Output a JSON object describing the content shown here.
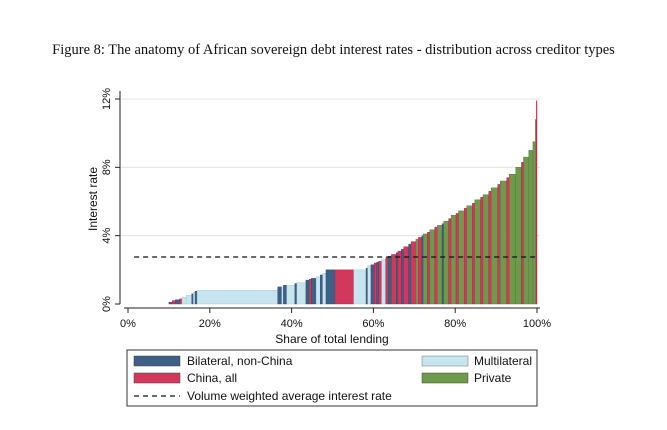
{
  "caption": "Figure 8: The anatomy of African sovereign debt interest rates - distribution across creditor types",
  "chart_data": {
    "type": "bar",
    "xlabel": "Share of total lending",
    "ylabel": "Interest rate",
    "xlim": [
      0,
      100
    ],
    "ylim": [
      0,
      12
    ],
    "xticks": [
      "0%",
      "20%",
      "40%",
      "60%",
      "80%",
      "100%"
    ],
    "yticks": [
      "0%",
      "4%",
      "8%",
      "12%"
    ],
    "weighted_average": 2.75,
    "grid": true,
    "colors": {
      "bilateral": "#3f5f86",
      "china": "#d1385b",
      "multilateral": "#c7e5ef",
      "private": "#6f9a4c"
    },
    "legend": {
      "bilateral": "Bilateral, non-China",
      "china": "China, all",
      "multilateral": "Multilateral",
      "private": "Private",
      "average": "Volume weighted average interest rate"
    },
    "segments": [
      {
        "type": "bilateral",
        "x0": 10.0,
        "x1": 10.8,
        "rate": 0.1
      },
      {
        "type": "china",
        "x0": 10.8,
        "x1": 11.6,
        "rate": 0.2
      },
      {
        "type": "bilateral",
        "x0": 11.6,
        "x1": 12.6,
        "rate": 0.25
      },
      {
        "type": "china",
        "x0": 12.6,
        "x1": 13.2,
        "rate": 0.3
      },
      {
        "type": "multilateral",
        "x0": 13.2,
        "x1": 14.2,
        "rate": 0.4
      },
      {
        "type": "multilateral",
        "x0": 14.2,
        "x1": 15.6,
        "rate": 0.5
      },
      {
        "type": "bilateral",
        "x0": 15.6,
        "x1": 16.0,
        "rate": 0.6
      },
      {
        "type": "multilateral",
        "x0": 16.0,
        "x1": 16.4,
        "rate": 0.7
      },
      {
        "type": "bilateral",
        "x0": 16.4,
        "x1": 16.9,
        "rate": 0.75
      },
      {
        "type": "multilateral",
        "x0": 16.9,
        "x1": 36.6,
        "rate": 0.8
      },
      {
        "type": "bilateral",
        "x0": 36.6,
        "x1": 37.6,
        "rate": 1.0
      },
      {
        "type": "multilateral",
        "x0": 37.6,
        "x1": 38.0,
        "rate": 1.0
      },
      {
        "type": "bilateral",
        "x0": 38.0,
        "x1": 38.8,
        "rate": 1.1
      },
      {
        "type": "multilateral",
        "x0": 38.8,
        "x1": 40.8,
        "rate": 1.1
      },
      {
        "type": "bilateral",
        "x0": 40.8,
        "x1": 41.3,
        "rate": 1.2
      },
      {
        "type": "multilateral",
        "x0": 41.3,
        "x1": 43.5,
        "rate": 1.25
      },
      {
        "type": "bilateral",
        "x0": 43.5,
        "x1": 44.3,
        "rate": 1.4
      },
      {
        "type": "china",
        "x0": 44.3,
        "x1": 44.8,
        "rate": 1.45
      },
      {
        "type": "bilateral",
        "x0": 44.8,
        "x1": 46.0,
        "rate": 1.5
      },
      {
        "type": "multilateral",
        "x0": 46.0,
        "x1": 47.0,
        "rate": 1.6
      },
      {
        "type": "bilateral",
        "x0": 47.0,
        "x1": 47.6,
        "rate": 1.7
      },
      {
        "type": "multilateral",
        "x0": 47.6,
        "x1": 48.4,
        "rate": 1.8
      },
      {
        "type": "bilateral",
        "x0": 48.4,
        "x1": 50.6,
        "rate": 2.0
      },
      {
        "type": "china",
        "x0": 50.6,
        "x1": 55.2,
        "rate": 2.0
      },
      {
        "type": "multilateral",
        "x0": 55.2,
        "x1": 58.2,
        "rate": 2.0
      },
      {
        "type": "bilateral",
        "x0": 58.2,
        "x1": 58.6,
        "rate": 2.1
      },
      {
        "type": "multilateral",
        "x0": 58.6,
        "x1": 59.4,
        "rate": 2.25
      },
      {
        "type": "bilateral",
        "x0": 59.4,
        "x1": 60.2,
        "rate": 2.3
      },
      {
        "type": "china",
        "x0": 60.2,
        "x1": 60.8,
        "rate": 2.4
      },
      {
        "type": "bilateral",
        "x0": 60.8,
        "x1": 61.3,
        "rate": 2.45
      },
      {
        "type": "china",
        "x0": 61.3,
        "x1": 62.0,
        "rate": 2.5
      },
      {
        "type": "multilateral",
        "x0": 62.0,
        "x1": 63.0,
        "rate": 2.6
      },
      {
        "type": "china",
        "x0": 63.0,
        "x1": 63.6,
        "rate": 2.7
      },
      {
        "type": "bilateral",
        "x0": 63.6,
        "x1": 64.4,
        "rate": 2.8
      },
      {
        "type": "china",
        "x0": 64.4,
        "x1": 65.6,
        "rate": 2.9
      },
      {
        "type": "bilateral",
        "x0": 65.6,
        "x1": 66.0,
        "rate": 3.0
      },
      {
        "type": "china",
        "x0": 66.0,
        "x1": 66.8,
        "rate": 3.1
      },
      {
        "type": "bilateral",
        "x0": 66.8,
        "x1": 67.4,
        "rate": 3.2
      },
      {
        "type": "china",
        "x0": 67.4,
        "x1": 68.6,
        "rate": 3.35
      },
      {
        "type": "bilateral",
        "x0": 68.6,
        "x1": 69.2,
        "rate": 3.5
      },
      {
        "type": "china",
        "x0": 69.2,
        "x1": 70.4,
        "rate": 3.65
      },
      {
        "type": "private",
        "x0": 70.4,
        "x1": 71.0,
        "rate": 3.8
      },
      {
        "type": "china",
        "x0": 71.0,
        "x1": 71.8,
        "rate": 3.9
      },
      {
        "type": "bilateral",
        "x0": 71.8,
        "x1": 72.2,
        "rate": 4.0
      },
      {
        "type": "private",
        "x0": 72.2,
        "x1": 73.2,
        "rate": 4.1
      },
      {
        "type": "china",
        "x0": 73.2,
        "x1": 73.8,
        "rate": 4.2
      },
      {
        "type": "private",
        "x0": 73.8,
        "x1": 75.0,
        "rate": 4.35
      },
      {
        "type": "china",
        "x0": 75.0,
        "x1": 75.6,
        "rate": 4.5
      },
      {
        "type": "private",
        "x0": 75.6,
        "x1": 76.8,
        "rate": 4.6
      },
      {
        "type": "bilateral",
        "x0": 76.8,
        "x1": 77.2,
        "rate": 4.7
      },
      {
        "type": "private",
        "x0": 77.2,
        "x1": 78.4,
        "rate": 4.85
      },
      {
        "type": "china",
        "x0": 78.4,
        "x1": 79.0,
        "rate": 5.0
      },
      {
        "type": "private",
        "x0": 79.0,
        "x1": 80.2,
        "rate": 5.2
      },
      {
        "type": "china",
        "x0": 80.2,
        "x1": 80.8,
        "rate": 5.3
      },
      {
        "type": "private",
        "x0": 80.8,
        "x1": 82.2,
        "rate": 5.45
      },
      {
        "type": "china",
        "x0": 82.2,
        "x1": 82.8,
        "rate": 5.6
      },
      {
        "type": "private",
        "x0": 82.8,
        "x1": 84.2,
        "rate": 5.75
      },
      {
        "type": "china",
        "x0": 84.2,
        "x1": 84.8,
        "rate": 5.9
      },
      {
        "type": "private",
        "x0": 84.8,
        "x1": 86.2,
        "rate": 6.1
      },
      {
        "type": "china",
        "x0": 86.2,
        "x1": 86.8,
        "rate": 6.25
      },
      {
        "type": "private",
        "x0": 86.8,
        "x1": 88.2,
        "rate": 6.4
      },
      {
        "type": "china",
        "x0": 88.2,
        "x1": 88.8,
        "rate": 6.6
      },
      {
        "type": "private",
        "x0": 88.8,
        "x1": 90.4,
        "rate": 6.8
      },
      {
        "type": "china",
        "x0": 90.4,
        "x1": 91.0,
        "rate": 7.0
      },
      {
        "type": "private",
        "x0": 91.0,
        "x1": 92.6,
        "rate": 7.2
      },
      {
        "type": "china",
        "x0": 92.6,
        "x1": 93.2,
        "rate": 7.4
      },
      {
        "type": "private",
        "x0": 93.2,
        "x1": 94.8,
        "rate": 7.6
      },
      {
        "type": "private",
        "x0": 94.8,
        "x1": 96.2,
        "rate": 8.0
      },
      {
        "type": "china",
        "x0": 96.2,
        "x1": 96.7,
        "rate": 8.3
      },
      {
        "type": "private",
        "x0": 96.7,
        "x1": 98.0,
        "rate": 8.6
      },
      {
        "type": "private",
        "x0": 98.0,
        "x1": 99.0,
        "rate": 9.0
      },
      {
        "type": "private",
        "x0": 99.0,
        "x1": 99.6,
        "rate": 9.5
      },
      {
        "type": "private",
        "x0": 99.6,
        "x1": 99.85,
        "rate": 10.8
      },
      {
        "type": "china",
        "x0": 99.85,
        "x1": 100.0,
        "rate": 11.9
      }
    ]
  }
}
